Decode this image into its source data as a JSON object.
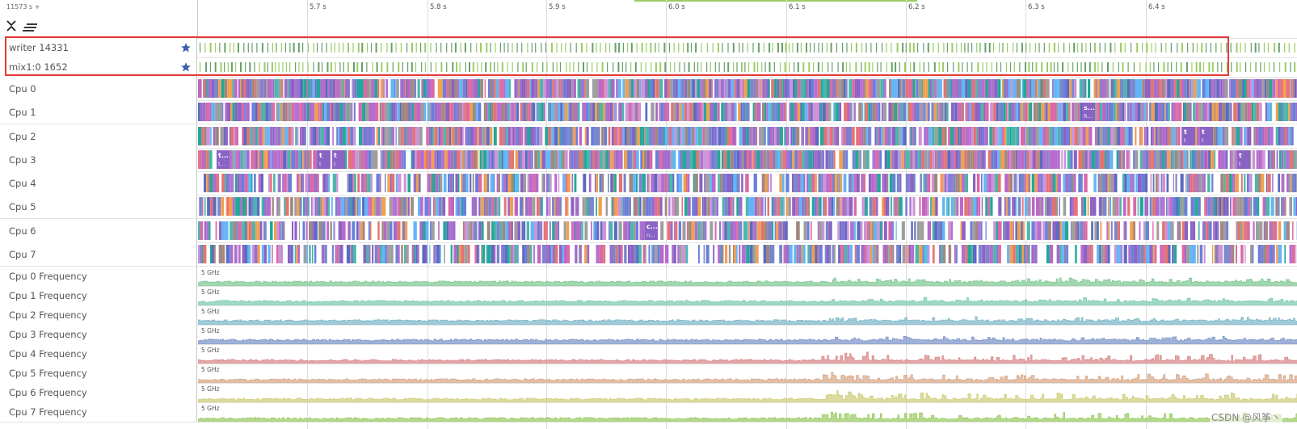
{
  "header": {
    "time_offset": "11573 s +",
    "collapse_icon": "collapse-all-icon",
    "sort_icon": "sort-lines-icon"
  },
  "ruler": {
    "ticks": [
      "5.7 s",
      "5.8 s",
      "5.9 s",
      "6.0 s",
      "6.1 s",
      "6.2 s",
      "6.3 s",
      "6.4 s"
    ]
  },
  "pinned_tracks": [
    {
      "label": "writer 14331",
      "pinned": true
    },
    {
      "label": "mix1:0 1652",
      "pinned": true
    }
  ],
  "cpu_tracks": [
    {
      "label": "Cpu 0"
    },
    {
      "label": "Cpu 1",
      "slice_labels": [
        {
          "t1": "s...",
          "t2": "R..."
        }
      ]
    },
    {
      "label": "Cpu 2",
      "slice_labels": [
        {
          "t1": "t",
          "t2": "t"
        },
        {
          "t1": "t",
          "t2": "t"
        }
      ]
    },
    {
      "label": "Cpu 3",
      "slice_labels": [
        {
          "t1": "t...",
          "t2": "t..."
        },
        {
          "t1": "t",
          "t2": "t"
        },
        {
          "t1": "t",
          "t2": "t"
        },
        {
          "t1": "t",
          "t2": "t"
        }
      ]
    },
    {
      "label": "Cpu 4"
    },
    {
      "label": "Cpu 5"
    },
    {
      "label": "Cpu 6",
      "slice_labels": [
        {
          "t1": "c...",
          "t2": "n..."
        }
      ]
    },
    {
      "label": "Cpu 7"
    }
  ],
  "freq_tracks": [
    {
      "label": "Cpu 0 Frequency",
      "max": "5 GHz",
      "color": "#81c995"
    },
    {
      "label": "Cpu 1 Frequency",
      "max": "5 GHz",
      "color": "#7fcbb4"
    },
    {
      "label": "Cpu 2 Frequency",
      "max": "5 GHz",
      "color": "#7fb8c9"
    },
    {
      "label": "Cpu 3 Frequency",
      "max": "5 GHz",
      "color": "#7f97c9"
    },
    {
      "label": "Cpu 4 Frequency",
      "max": "5 GHz",
      "color": "#d98a8a"
    },
    {
      "label": "Cpu 5 Frequency",
      "max": "5 GHz",
      "color": "#d9a98a"
    },
    {
      "label": "Cpu 6 Frequency",
      "max": "5 GHz",
      "color": "#cfcf7f"
    },
    {
      "label": "Cpu 7 Frequency",
      "max": "5 GHz",
      "color": "#9ccc65"
    }
  ],
  "colors": {
    "star": "#3f5fa8",
    "highlight": "#e53935",
    "pinned_slice_a": "#689f6b",
    "pinned_slice_b": "#9ccc65",
    "cpu_palette": [
      "#9c6fc9",
      "#8a63c4",
      "#b46fd0",
      "#6b7fd9",
      "#d96aa8",
      "#e57373",
      "#4db6ac",
      "#7986cb",
      "#a1887f",
      "#f0a050",
      "#64b5f6",
      "#ba68c8",
      "#ce93d8",
      "#9e9e9e",
      "#5c6bc0",
      "#26a69a"
    ]
  },
  "watermark": "CSDN @风筝丶"
}
